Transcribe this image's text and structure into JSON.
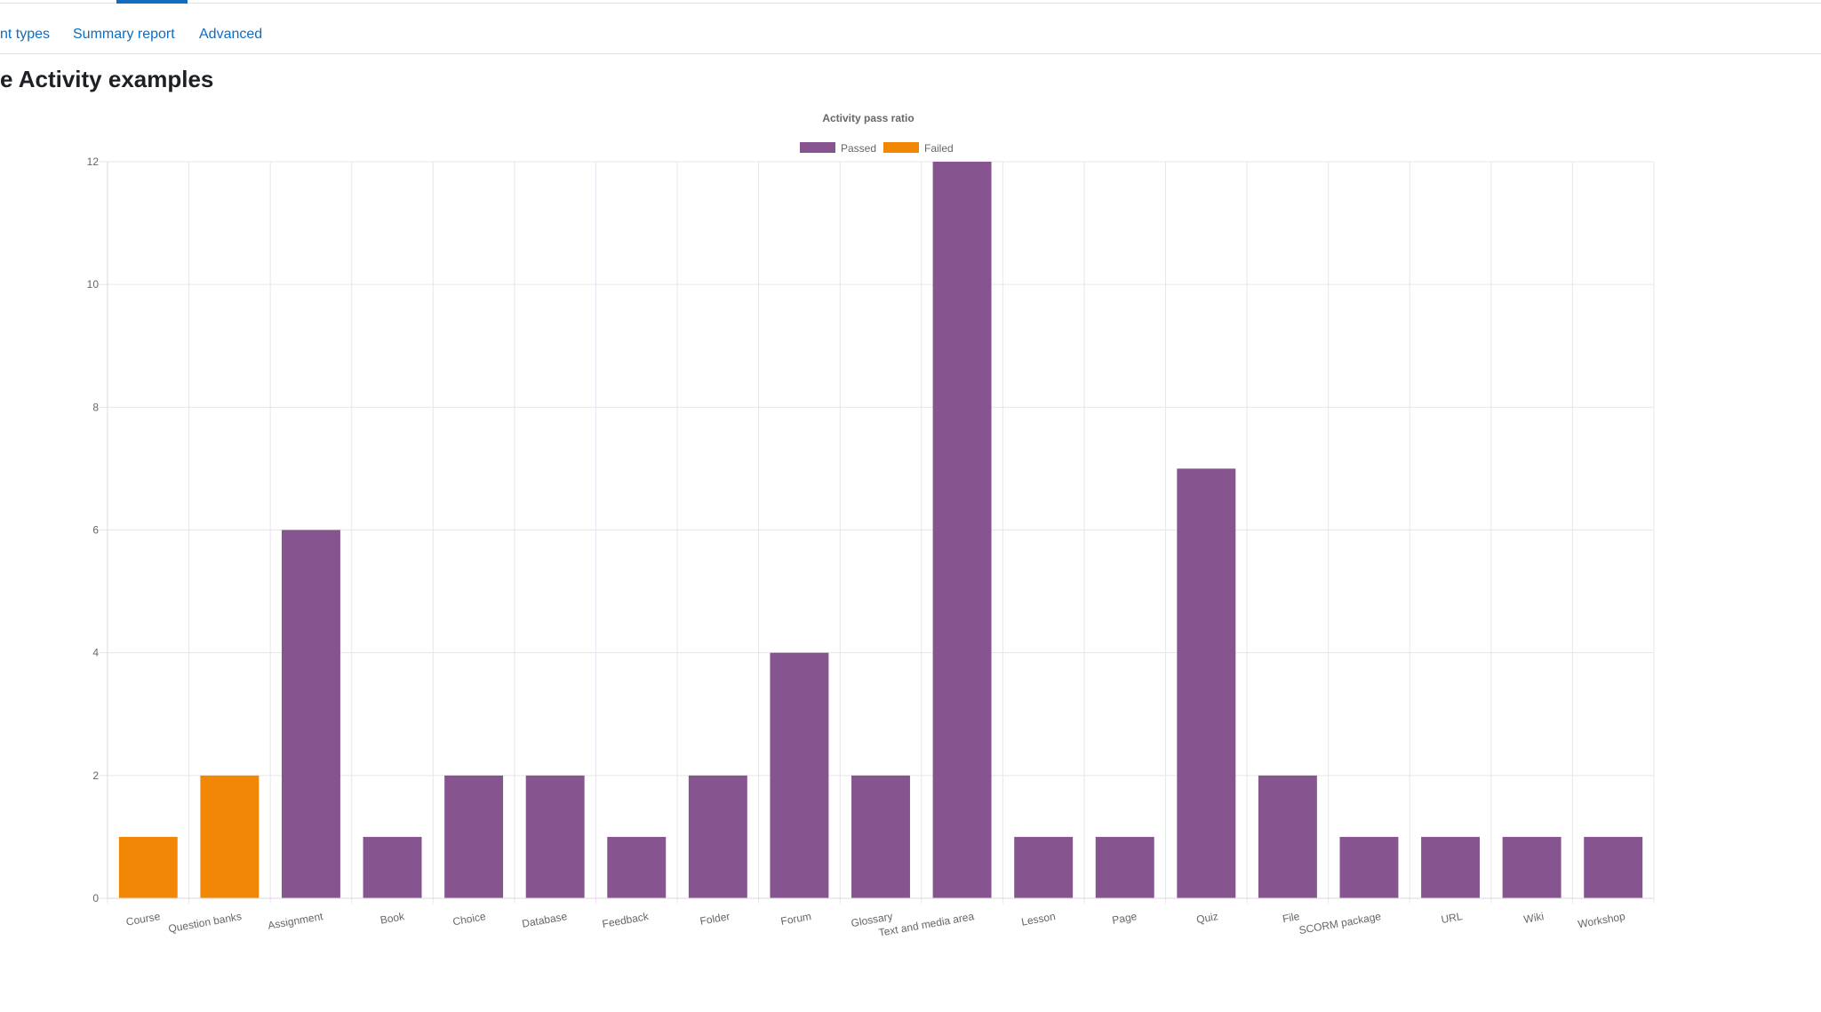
{
  "nav": {
    "tabs": [
      {
        "label": "nt types"
      },
      {
        "label": "Summary report"
      },
      {
        "label": "Advanced"
      }
    ]
  },
  "page": {
    "title": "e Activity examples"
  },
  "colors": {
    "passed": "#86558f",
    "failed": "#f28705",
    "link": "#0f6cbf"
  },
  "chart_data": {
    "type": "bar",
    "title": "Activity pass ratio",
    "xlabel": "",
    "ylabel": "",
    "ylim": [
      0,
      12
    ],
    "yticks": [
      0,
      2,
      4,
      6,
      8,
      10,
      12
    ],
    "grid": true,
    "legend_position": "top-center",
    "stacked": true,
    "categories": [
      "Course",
      "Question banks",
      "Assignment",
      "Book",
      "Choice",
      "Database",
      "Feedback",
      "Folder",
      "Forum",
      "Glossary",
      "Text and media area",
      "Lesson",
      "Page",
      "Quiz",
      "File",
      "SCORM package",
      "URL",
      "Wiki",
      "Workshop"
    ],
    "series": [
      {
        "name": "Passed",
        "color": "#86558f",
        "values": [
          0,
          0,
          6,
          1,
          2,
          2,
          1,
          2,
          4,
          2,
          12,
          1,
          1,
          7,
          2,
          1,
          1,
          1,
          1
        ]
      },
      {
        "name": "Failed",
        "color": "#f28705",
        "values": [
          1,
          2,
          0,
          0,
          0,
          0,
          0,
          0,
          0,
          0,
          0,
          0,
          0,
          0,
          0,
          0,
          0,
          0,
          0
        ]
      }
    ]
  }
}
